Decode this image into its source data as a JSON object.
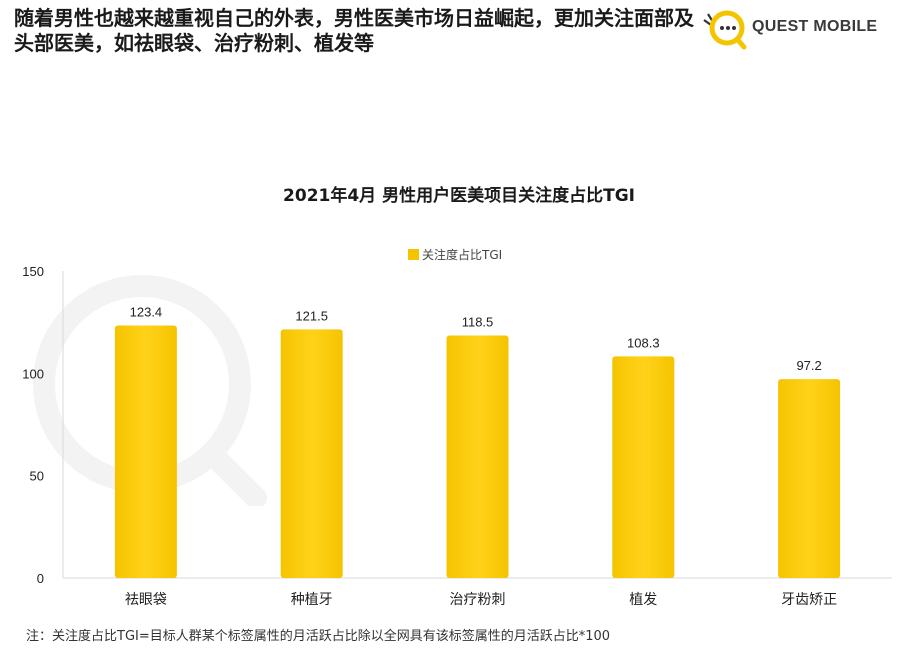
{
  "headline": "随着男性也越来越重视自己的外表，男性医美市场日益崛起，更加关注面部及头部医美，如祛眼袋、治疗粉刺、植发等",
  "logo": {
    "text": "QUEST MOBILE",
    "icon": "quest-mobile-logo-icon",
    "colors": {
      "ring": "#f5c400",
      "dots": "#333333"
    }
  },
  "footnote": "注：关注度占比TGI=目标人群某个标签属性的月活跃占比除以全网具有该标签属性的月活跃占比*100",
  "colors": {
    "bar": "#f5c400",
    "bar_light": "#ffd21a",
    "axis": "#d8d8d8",
    "text": "#222222"
  },
  "chart_data": {
    "type": "bar",
    "title": "2021年4月 男性用户医美项目关注度占比TGI",
    "categories": [
      "祛眼袋",
      "种植牙",
      "治疗粉刺",
      "植发",
      "牙齿矫正"
    ],
    "series": [
      {
        "name": "关注度占比TGI",
        "values": [
          123.4,
          121.5,
          118.5,
          108.3,
          97.2
        ]
      }
    ],
    "data_labels": [
      "123.4",
      "121.5",
      "118.5",
      "108.3",
      "97.2"
    ],
    "ylim": [
      0,
      150
    ],
    "yticks": [
      0,
      50,
      100,
      150
    ],
    "ytick_labels": [
      "0",
      "50",
      "100",
      "150"
    ],
    "xlabel": "",
    "ylabel": "",
    "grid": false,
    "legend_position": "top-center"
  }
}
